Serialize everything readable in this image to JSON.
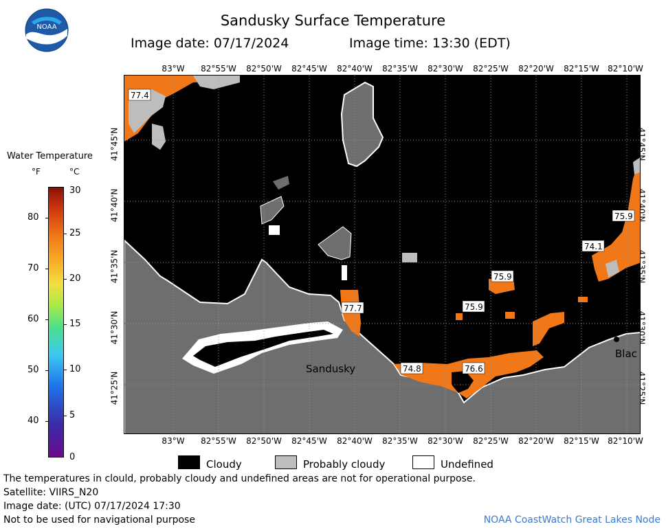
{
  "header": {
    "title": "Sandusky Surface Temperature",
    "image_date": "Image date: 07/17/2024",
    "image_time": "Image time: 13:30 (EDT)"
  },
  "logo": {
    "icon": "noaa-logo-icon",
    "text": "NOAA"
  },
  "legend": {
    "title": "Water Temperature",
    "unit_f": "°F",
    "unit_c": "°C",
    "f_ticks": [
      "40",
      "50",
      "60",
      "70",
      "80"
    ],
    "c_ticks": [
      "0",
      "5",
      "10",
      "15",
      "20",
      "25",
      "30"
    ]
  },
  "map": {
    "lon_labels": [
      "83°W",
      "82°55'W",
      "82°50'W",
      "82°45'W",
      "82°40'W",
      "82°35'W",
      "82°30'W",
      "82°25'W",
      "82°20'W",
      "82°15'W",
      "82°10'W"
    ],
    "lat_labels": [
      "41°45'N",
      "41°40'N",
      "41°35'N",
      "41°30'N",
      "41°25'N"
    ],
    "place_labels": {
      "sandusky": "Sandusky",
      "black": "Blac"
    },
    "temperatures": [
      "77.4",
      "75.9",
      "74.1",
      "75.9",
      "75.9",
      "77.7",
      "74.8",
      "76.6"
    ],
    "colors": {
      "land": "#6e6e6e",
      "cloudy": "#000000",
      "probably_cloudy": "#bdbdbd",
      "undefined": "#ffffff",
      "warm_water": "#f07818"
    }
  },
  "key": {
    "cloudy": "Cloudy",
    "probably_cloudy": "Probably cloudy",
    "undefined": "Undefined"
  },
  "notes": {
    "line1": "The temperatures in clould, probably cloudy and undefined areas are not for operational purpose.",
    "line2": "Satellite: VIIRS_N20",
    "line3": "Image date: (UTC) 07/17/2024  17:30",
    "line4": "Not to be used for navigational purpose"
  },
  "credit": "NOAA CoastWatch Great Lakes Node"
}
